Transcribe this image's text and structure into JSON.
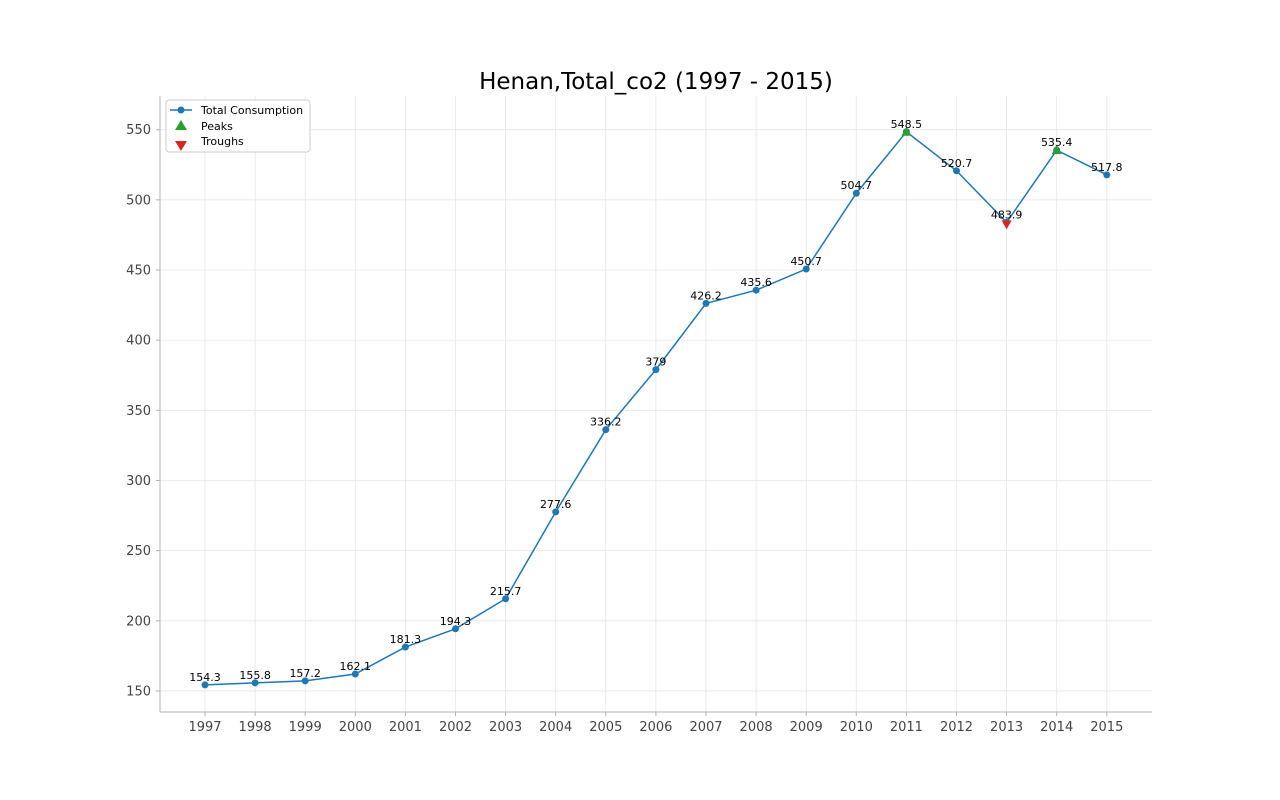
{
  "chart_data": {
    "type": "line",
    "title": "Henan,Total_co2 (1997 - 2015)",
    "xlabel": "",
    "ylabel": "",
    "x": [
      "1997",
      "1998",
      "1999",
      "2000",
      "2001",
      "2002",
      "2003",
      "2004",
      "2005",
      "2006",
      "2007",
      "2008",
      "2009",
      "2010",
      "2011",
      "2012",
      "2013",
      "2014",
      "2015"
    ],
    "series": [
      {
        "name": "Total Consumption",
        "values": [
          154.3,
          155.8,
          157.2,
          162.1,
          181.3,
          194.3,
          215.7,
          277.6,
          336.2,
          379,
          426.2,
          435.6,
          450.7,
          504.7,
          548.5,
          520.7,
          483.9,
          535.4,
          517.8
        ]
      }
    ],
    "data_labels": [
      "154.3",
      "155.8",
      "157.2",
      "162.1",
      "181.3",
      "194.3",
      "215.7",
      "277.6",
      "336.2",
      "379",
      "426.2",
      "435.6",
      "450.7",
      "504.7",
      "548.5",
      "520.7",
      "483.9",
      "535.4",
      "517.8"
    ],
    "peaks": [
      {
        "x": "2011",
        "y": 548.5
      },
      {
        "x": "2014",
        "y": 535.4
      }
    ],
    "troughs": [
      {
        "x": "2013",
        "y": 483.9
      }
    ],
    "legend": {
      "placement": "top-left",
      "entries": [
        "Total Consumption",
        "Peaks",
        "Troughs"
      ]
    },
    "yticks": [
      150,
      200,
      250,
      300,
      350,
      400,
      450,
      500,
      550
    ],
    "ylim": [
      135,
      574
    ],
    "grid": true,
    "colors": {
      "line": "#1f77b4",
      "peaks": "#2ca02c",
      "troughs": "#d62728",
      "grid": "#e6e6e6",
      "axis": "#b0b0b0"
    }
  }
}
